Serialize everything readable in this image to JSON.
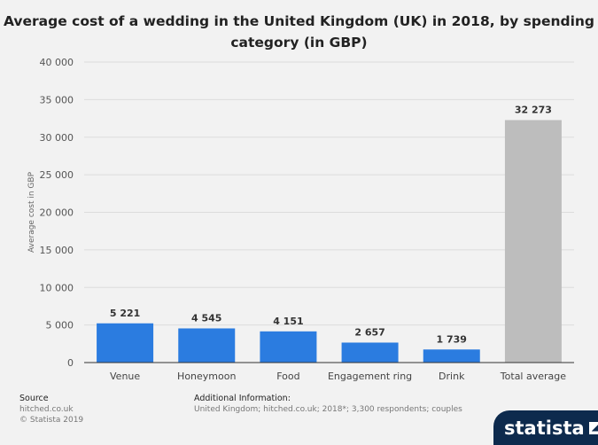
{
  "title_line1": "Average cost of a wedding in the United Kingdom (UK) in 2018, by spending",
  "title_line2": "category (in GBP)",
  "chart_data": {
    "type": "bar",
    "categories": [
      "Venue",
      "Honeymoon",
      "Food",
      "Engagement ring",
      "Drink",
      "Total average"
    ],
    "values": [
      5221,
      4545,
      4151,
      2657,
      1739,
      32273
    ],
    "value_labels": [
      "5 221",
      "4 545",
      "4 151",
      "2 657",
      "1 739",
      "32 273"
    ],
    "ylabel": "Average cost in GBP",
    "ylim": [
      0,
      40000
    ],
    "yticks": [
      0,
      5000,
      10000,
      15000,
      20000,
      25000,
      30000,
      35000,
      40000
    ],
    "ytick_labels": [
      "0",
      "5 000",
      "10 000",
      "15 000",
      "20 000",
      "25 000",
      "30 000",
      "35 000",
      "40 000"
    ],
    "bar_colors": [
      "#2b7ce0",
      "#2b7ce0",
      "#2b7ce0",
      "#2b7ce0",
      "#2b7ce0",
      "#bdbdbd"
    ],
    "grid": true
  },
  "footer": {
    "source_label": "Source",
    "source_name": "hitched.co.uk",
    "copyright": "© Statista 2019",
    "info_label": "Additional Information:",
    "info_text": "United Kingdom; hitched.co.uk; 2018*; 3,300 respondents; couples"
  },
  "logo": {
    "text": "statista"
  }
}
